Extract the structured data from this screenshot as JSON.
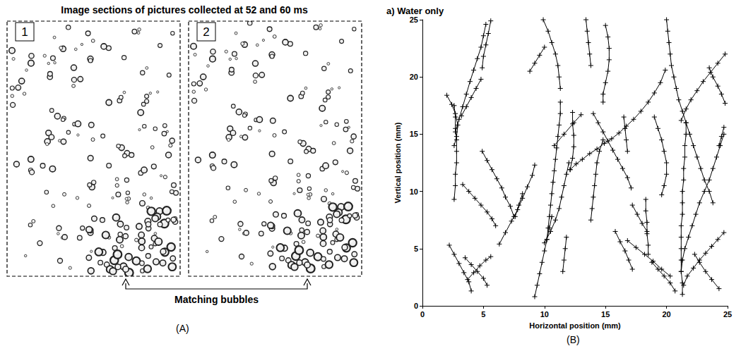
{
  "panel_labels": [
    "(A)",
    "(B)"
  ],
  "panel_a": {
    "title": "Image sections of pictures collected at 52 and 60 ms",
    "frames": [
      "1",
      "2"
    ],
    "arrow_label": "Matching bubbles"
  },
  "chart_data": {
    "type": "line",
    "title": "a) Water only",
    "x_label": "Horizontal position (mm)",
    "y_label": "Vertical position (mm)",
    "xlim": [
      0,
      25
    ],
    "ylim": [
      0,
      25
    ],
    "xticks": [
      0,
      5,
      10,
      15,
      20,
      25
    ],
    "yticks": [
      0,
      5,
      10,
      15,
      20,
      25
    ],
    "grid": false,
    "color": "#000000",
    "marker": "+",
    "line_style": "solid",
    "series": [
      {
        "values": [
          [
            2.0,
            18.4
          ],
          [
            2.4,
            17.6
          ],
          [
            2.7,
            16.8
          ],
          [
            2.9,
            15.8
          ],
          [
            2.8,
            14.8
          ],
          [
            2.6,
            14.0
          ]
        ]
      },
      {
        "values": [
          [
            2.6,
            17.5
          ],
          [
            2.7,
            16.5
          ],
          [
            2.7,
            15.5
          ],
          [
            2.8,
            14.5
          ],
          [
            2.8,
            13.5
          ],
          [
            2.8,
            12.5
          ],
          [
            2.7,
            11.5
          ],
          [
            2.7,
            10.5
          ],
          [
            2.6,
            9.3
          ]
        ]
      },
      {
        "values": [
          [
            2.7,
            15.2
          ],
          [
            3.0,
            16.3
          ],
          [
            3.3,
            17.4
          ],
          [
            3.6,
            18.5
          ],
          [
            3.9,
            19.6
          ],
          [
            4.2,
            20.6
          ],
          [
            4.5,
            21.6
          ],
          [
            4.8,
            22.6
          ],
          [
            5.0,
            23.6
          ],
          [
            5.2,
            24.6
          ]
        ]
      },
      {
        "values": [
          [
            4.9,
            20.8
          ],
          [
            5.0,
            21.8
          ],
          [
            5.2,
            22.8
          ],
          [
            5.4,
            23.8
          ],
          [
            5.6,
            24.9
          ]
        ]
      },
      {
        "values": [
          [
            3.2,
            16.6
          ],
          [
            3.6,
            17.4
          ],
          [
            4.0,
            18.2
          ],
          [
            4.4,
            19.0
          ],
          [
            4.8,
            19.8
          ]
        ]
      },
      {
        "values": [
          [
            3.3,
            10.6
          ],
          [
            3.8,
            10.0
          ],
          [
            4.3,
            9.4
          ],
          [
            4.8,
            8.8
          ],
          [
            5.3,
            8.2
          ],
          [
            5.7,
            7.6
          ],
          [
            6.0,
            7.0
          ]
        ]
      },
      {
        "values": [
          [
            4.9,
            13.5
          ],
          [
            5.3,
            12.7
          ],
          [
            5.7,
            11.9
          ],
          [
            6.1,
            11.1
          ],
          [
            6.5,
            10.3
          ],
          [
            6.8,
            9.5
          ],
          [
            7.2,
            8.7
          ],
          [
            7.5,
            7.8
          ]
        ]
      },
      {
        "values": [
          [
            2.2,
            5.3
          ],
          [
            2.6,
            4.5
          ],
          [
            3.0,
            3.7
          ],
          [
            3.4,
            2.9
          ],
          [
            3.8,
            2.1
          ],
          [
            4.0,
            1.3
          ]
        ]
      },
      {
        "values": [
          [
            3.5,
            4.2
          ],
          [
            4.0,
            3.6
          ],
          [
            4.5,
            3.0
          ],
          [
            5.0,
            2.4
          ],
          [
            5.3,
            1.8
          ]
        ]
      },
      {
        "values": [
          [
            3.7,
            2.3
          ],
          [
            4.2,
            2.9
          ],
          [
            4.7,
            3.5
          ],
          [
            5.2,
            4.0
          ],
          [
            5.6,
            4.3
          ]
        ]
      },
      {
        "values": [
          [
            6.3,
            5.4
          ],
          [
            6.8,
            6.4
          ],
          [
            7.3,
            7.4
          ],
          [
            7.8,
            8.4
          ],
          [
            8.2,
            9.4
          ],
          [
            8.6,
            10.4
          ],
          [
            9.0,
            11.4
          ],
          [
            9.2,
            12.3
          ]
        ]
      },
      {
        "values": [
          [
            7.6,
            7.8
          ],
          [
            7.9,
            8.8
          ],
          [
            8.2,
            9.8
          ]
        ]
      },
      {
        "values": [
          [
            8.8,
            20.5
          ],
          [
            9.2,
            21.2
          ],
          [
            9.6,
            21.9
          ],
          [
            10.0,
            22.6
          ]
        ]
      },
      {
        "values": [
          [
            9.9,
            25.0
          ],
          [
            10.3,
            24.0
          ],
          [
            10.6,
            23.0
          ],
          [
            10.9,
            22.0
          ],
          [
            11.1,
            21.0
          ],
          [
            11.2,
            20.0
          ],
          [
            11.3,
            19.0
          ]
        ]
      },
      {
        "values": [
          [
            9.2,
            0.8
          ],
          [
            9.4,
            1.8
          ],
          [
            9.6,
            2.8
          ],
          [
            9.8,
            3.8
          ],
          [
            10.0,
            4.8
          ],
          [
            10.2,
            5.8
          ],
          [
            10.4,
            6.8
          ],
          [
            10.6,
            7.8
          ]
        ]
      },
      {
        "values": [
          [
            10.0,
            5.5
          ],
          [
            10.5,
            6.5
          ],
          [
            10.9,
            7.5
          ],
          [
            11.2,
            8.5
          ],
          [
            11.4,
            9.5
          ],
          [
            11.6,
            10.5
          ],
          [
            11.8,
            11.5
          ],
          [
            12.0,
            12.5
          ]
        ]
      },
      {
        "values": [
          [
            11.3,
            17.8
          ],
          [
            11.3,
            16.8
          ],
          [
            11.2,
            15.8
          ],
          [
            11.1,
            14.8
          ],
          [
            11.0,
            13.8
          ],
          [
            10.9,
            12.8
          ],
          [
            10.8,
            11.8
          ],
          [
            10.7,
            10.8
          ],
          [
            10.6,
            9.8
          ],
          [
            10.5,
            8.8
          ],
          [
            10.4,
            7.8
          ],
          [
            10.3,
            6.8
          ],
          [
            10.2,
            5.8
          ]
        ]
      },
      {
        "values": [
          [
            10.8,
            14.0
          ],
          [
            11.6,
            15.0
          ],
          [
            12.4,
            16.0
          ],
          [
            13.0,
            16.7
          ]
        ]
      },
      {
        "values": [
          [
            11.5,
            3.0
          ],
          [
            11.6,
            4.0
          ],
          [
            11.7,
            5.0
          ],
          [
            11.8,
            6.0
          ]
        ]
      },
      {
        "values": [
          [
            12.1,
            11.9
          ],
          [
            12.6,
            12.4
          ],
          [
            13.1,
            12.8
          ],
          [
            13.7,
            13.3
          ],
          [
            14.3,
            13.7
          ],
          [
            14.9,
            14.2
          ],
          [
            15.5,
            14.6
          ],
          [
            16.1,
            15.1
          ],
          [
            16.7,
            15.7
          ],
          [
            17.3,
            16.3
          ],
          [
            17.9,
            17.0
          ],
          [
            18.5,
            17.8
          ],
          [
            19.0,
            18.6
          ],
          [
            19.5,
            19.5
          ],
          [
            19.9,
            20.6
          ]
        ]
      },
      {
        "values": [
          [
            12.1,
            11.9
          ],
          [
            12.3,
            12.9
          ],
          [
            12.4,
            13.9
          ],
          [
            12.4,
            14.9
          ],
          [
            12.3,
            15.9
          ],
          [
            12.3,
            16.9
          ]
        ]
      },
      {
        "values": [
          [
            13.4,
            25.0
          ],
          [
            13.5,
            24.0
          ],
          [
            13.6,
            23.0
          ],
          [
            13.7,
            22.0
          ],
          [
            13.8,
            21.0
          ]
        ]
      },
      {
        "values": [
          [
            13.8,
            7.5
          ],
          [
            13.9,
            8.5
          ],
          [
            14.0,
            9.5
          ],
          [
            14.1,
            10.5
          ],
          [
            14.2,
            11.5
          ],
          [
            14.3,
            12.5
          ],
          [
            14.5,
            13.5
          ],
          [
            14.8,
            14.5
          ]
        ]
      },
      {
        "values": [
          [
            15.0,
            24.5
          ],
          [
            15.2,
            23.5
          ],
          [
            15.3,
            22.5
          ],
          [
            15.3,
            21.5
          ],
          [
            15.2,
            20.5
          ],
          [
            15.0,
            19.5
          ],
          [
            14.8,
            18.5
          ],
          [
            14.8,
            17.8
          ]
        ]
      },
      {
        "values": [
          [
            14.0,
            16.8
          ],
          [
            14.4,
            16.0
          ],
          [
            14.8,
            15.2
          ],
          [
            15.2,
            14.4
          ],
          [
            15.6,
            13.6
          ],
          [
            16.0,
            12.8
          ],
          [
            16.4,
            12.0
          ],
          [
            16.8,
            11.2
          ],
          [
            17.1,
            10.3
          ]
        ]
      },
      {
        "values": [
          [
            16.5,
            16.5
          ],
          [
            16.6,
            15.5
          ],
          [
            16.7,
            14.5
          ],
          [
            16.8,
            13.5
          ]
        ]
      },
      {
        "values": [
          [
            15.8,
            6.5
          ],
          [
            16.2,
            5.6
          ],
          [
            16.6,
            4.8
          ],
          [
            16.9,
            4.0
          ],
          [
            17.2,
            3.2
          ]
        ]
      },
      {
        "values": [
          [
            18.3,
            9.3
          ],
          [
            18.3,
            8.3
          ],
          [
            18.4,
            7.3
          ],
          [
            18.4,
            6.3
          ],
          [
            18.5,
            5.3
          ],
          [
            18.5,
            4.5
          ]
        ]
      },
      {
        "values": [
          [
            17.2,
            8.8
          ],
          [
            17.6,
            8.0
          ],
          [
            18.0,
            7.2
          ],
          [
            18.4,
            6.5
          ]
        ]
      },
      {
        "values": [
          [
            19.0,
            16.5
          ],
          [
            19.3,
            15.5
          ],
          [
            19.6,
            14.5
          ],
          [
            19.8,
            13.5
          ],
          [
            20.0,
            12.5
          ],
          [
            20.0,
            11.5
          ],
          [
            19.8,
            10.5
          ],
          [
            19.6,
            9.7
          ]
        ]
      },
      {
        "values": [
          [
            20.0,
            25.0
          ],
          [
            20.1,
            24.0
          ],
          [
            20.2,
            23.0
          ],
          [
            20.3,
            22.0
          ],
          [
            20.4,
            21.0
          ],
          [
            20.6,
            20.0
          ],
          [
            20.8,
            19.0
          ],
          [
            21.0,
            18.0
          ],
          [
            21.3,
            17.0
          ],
          [
            21.6,
            16.0
          ],
          [
            21.9,
            15.0
          ],
          [
            22.2,
            14.0
          ],
          [
            22.5,
            13.0
          ],
          [
            22.8,
            12.0
          ],
          [
            23.1,
            11.0
          ],
          [
            23.5,
            10.0
          ],
          [
            23.8,
            9.0
          ]
        ]
      },
      {
        "values": [
          [
            21.6,
            16.0
          ],
          [
            21.6,
            15.0
          ],
          [
            21.5,
            14.0
          ],
          [
            21.5,
            13.0
          ],
          [
            21.4,
            12.0
          ],
          [
            21.4,
            11.0
          ],
          [
            21.3,
            10.0
          ],
          [
            21.3,
            9.0
          ],
          [
            21.3,
            8.0
          ],
          [
            21.2,
            7.0
          ],
          [
            21.2,
            6.0
          ],
          [
            21.2,
            5.0
          ],
          [
            21.2,
            4.0
          ],
          [
            21.2,
            3.0
          ],
          [
            21.3,
            2.0
          ],
          [
            21.3,
            1.0
          ]
        ]
      },
      {
        "values": [
          [
            24.8,
            22.0
          ],
          [
            24.2,
            21.2
          ],
          [
            23.6,
            20.4
          ],
          [
            23.0,
            19.6
          ],
          [
            22.5,
            18.8
          ],
          [
            22.0,
            18.0
          ],
          [
            21.6,
            17.2
          ],
          [
            21.2,
            16.2
          ]
        ]
      },
      {
        "values": [
          [
            23.5,
            20.8
          ],
          [
            23.8,
            20.0
          ],
          [
            24.2,
            19.2
          ],
          [
            24.5,
            18.5
          ],
          [
            24.8,
            17.7
          ]
        ]
      },
      {
        "values": [
          [
            24.7,
            15.0
          ],
          [
            24.4,
            14.0
          ],
          [
            24.1,
            13.0
          ],
          [
            23.8,
            12.0
          ],
          [
            23.5,
            11.0
          ],
          [
            23.1,
            10.0
          ],
          [
            22.7,
            9.0
          ],
          [
            22.4,
            8.0
          ],
          [
            22.1,
            7.0
          ],
          [
            21.8,
            6.0
          ],
          [
            21.5,
            5.0
          ],
          [
            21.3,
            4.0
          ],
          [
            21.2,
            3.0
          ]
        ]
      },
      {
        "values": [
          [
            24.7,
            6.4
          ],
          [
            24.2,
            5.8
          ],
          [
            23.7,
            5.2
          ],
          [
            23.2,
            4.6
          ],
          [
            22.7,
            4.0
          ],
          [
            22.2,
            3.3
          ],
          [
            21.7,
            2.6
          ],
          [
            21.4,
            1.8
          ]
        ]
      },
      {
        "values": [
          [
            22.3,
            4.5
          ],
          [
            22.7,
            3.8
          ],
          [
            23.2,
            3.0
          ],
          [
            23.7,
            2.3
          ],
          [
            24.3,
            1.5
          ]
        ]
      },
      {
        "values": [
          [
            16.8,
            5.7
          ],
          [
            17.5,
            5.1
          ],
          [
            18.2,
            4.5
          ],
          [
            18.9,
            3.9
          ],
          [
            19.6,
            3.2
          ],
          [
            20.3,
            2.6
          ]
        ]
      },
      {
        "values": [
          [
            18.8,
            3.8
          ],
          [
            19.3,
            3.2
          ],
          [
            19.8,
            2.6
          ],
          [
            20.3,
            2.0
          ],
          [
            20.7,
            1.3
          ]
        ]
      },
      {
        "values": [
          [
            24.3,
            14.0
          ],
          [
            24.5,
            14.8
          ],
          [
            24.7,
            15.6
          ]
        ]
      }
    ]
  }
}
